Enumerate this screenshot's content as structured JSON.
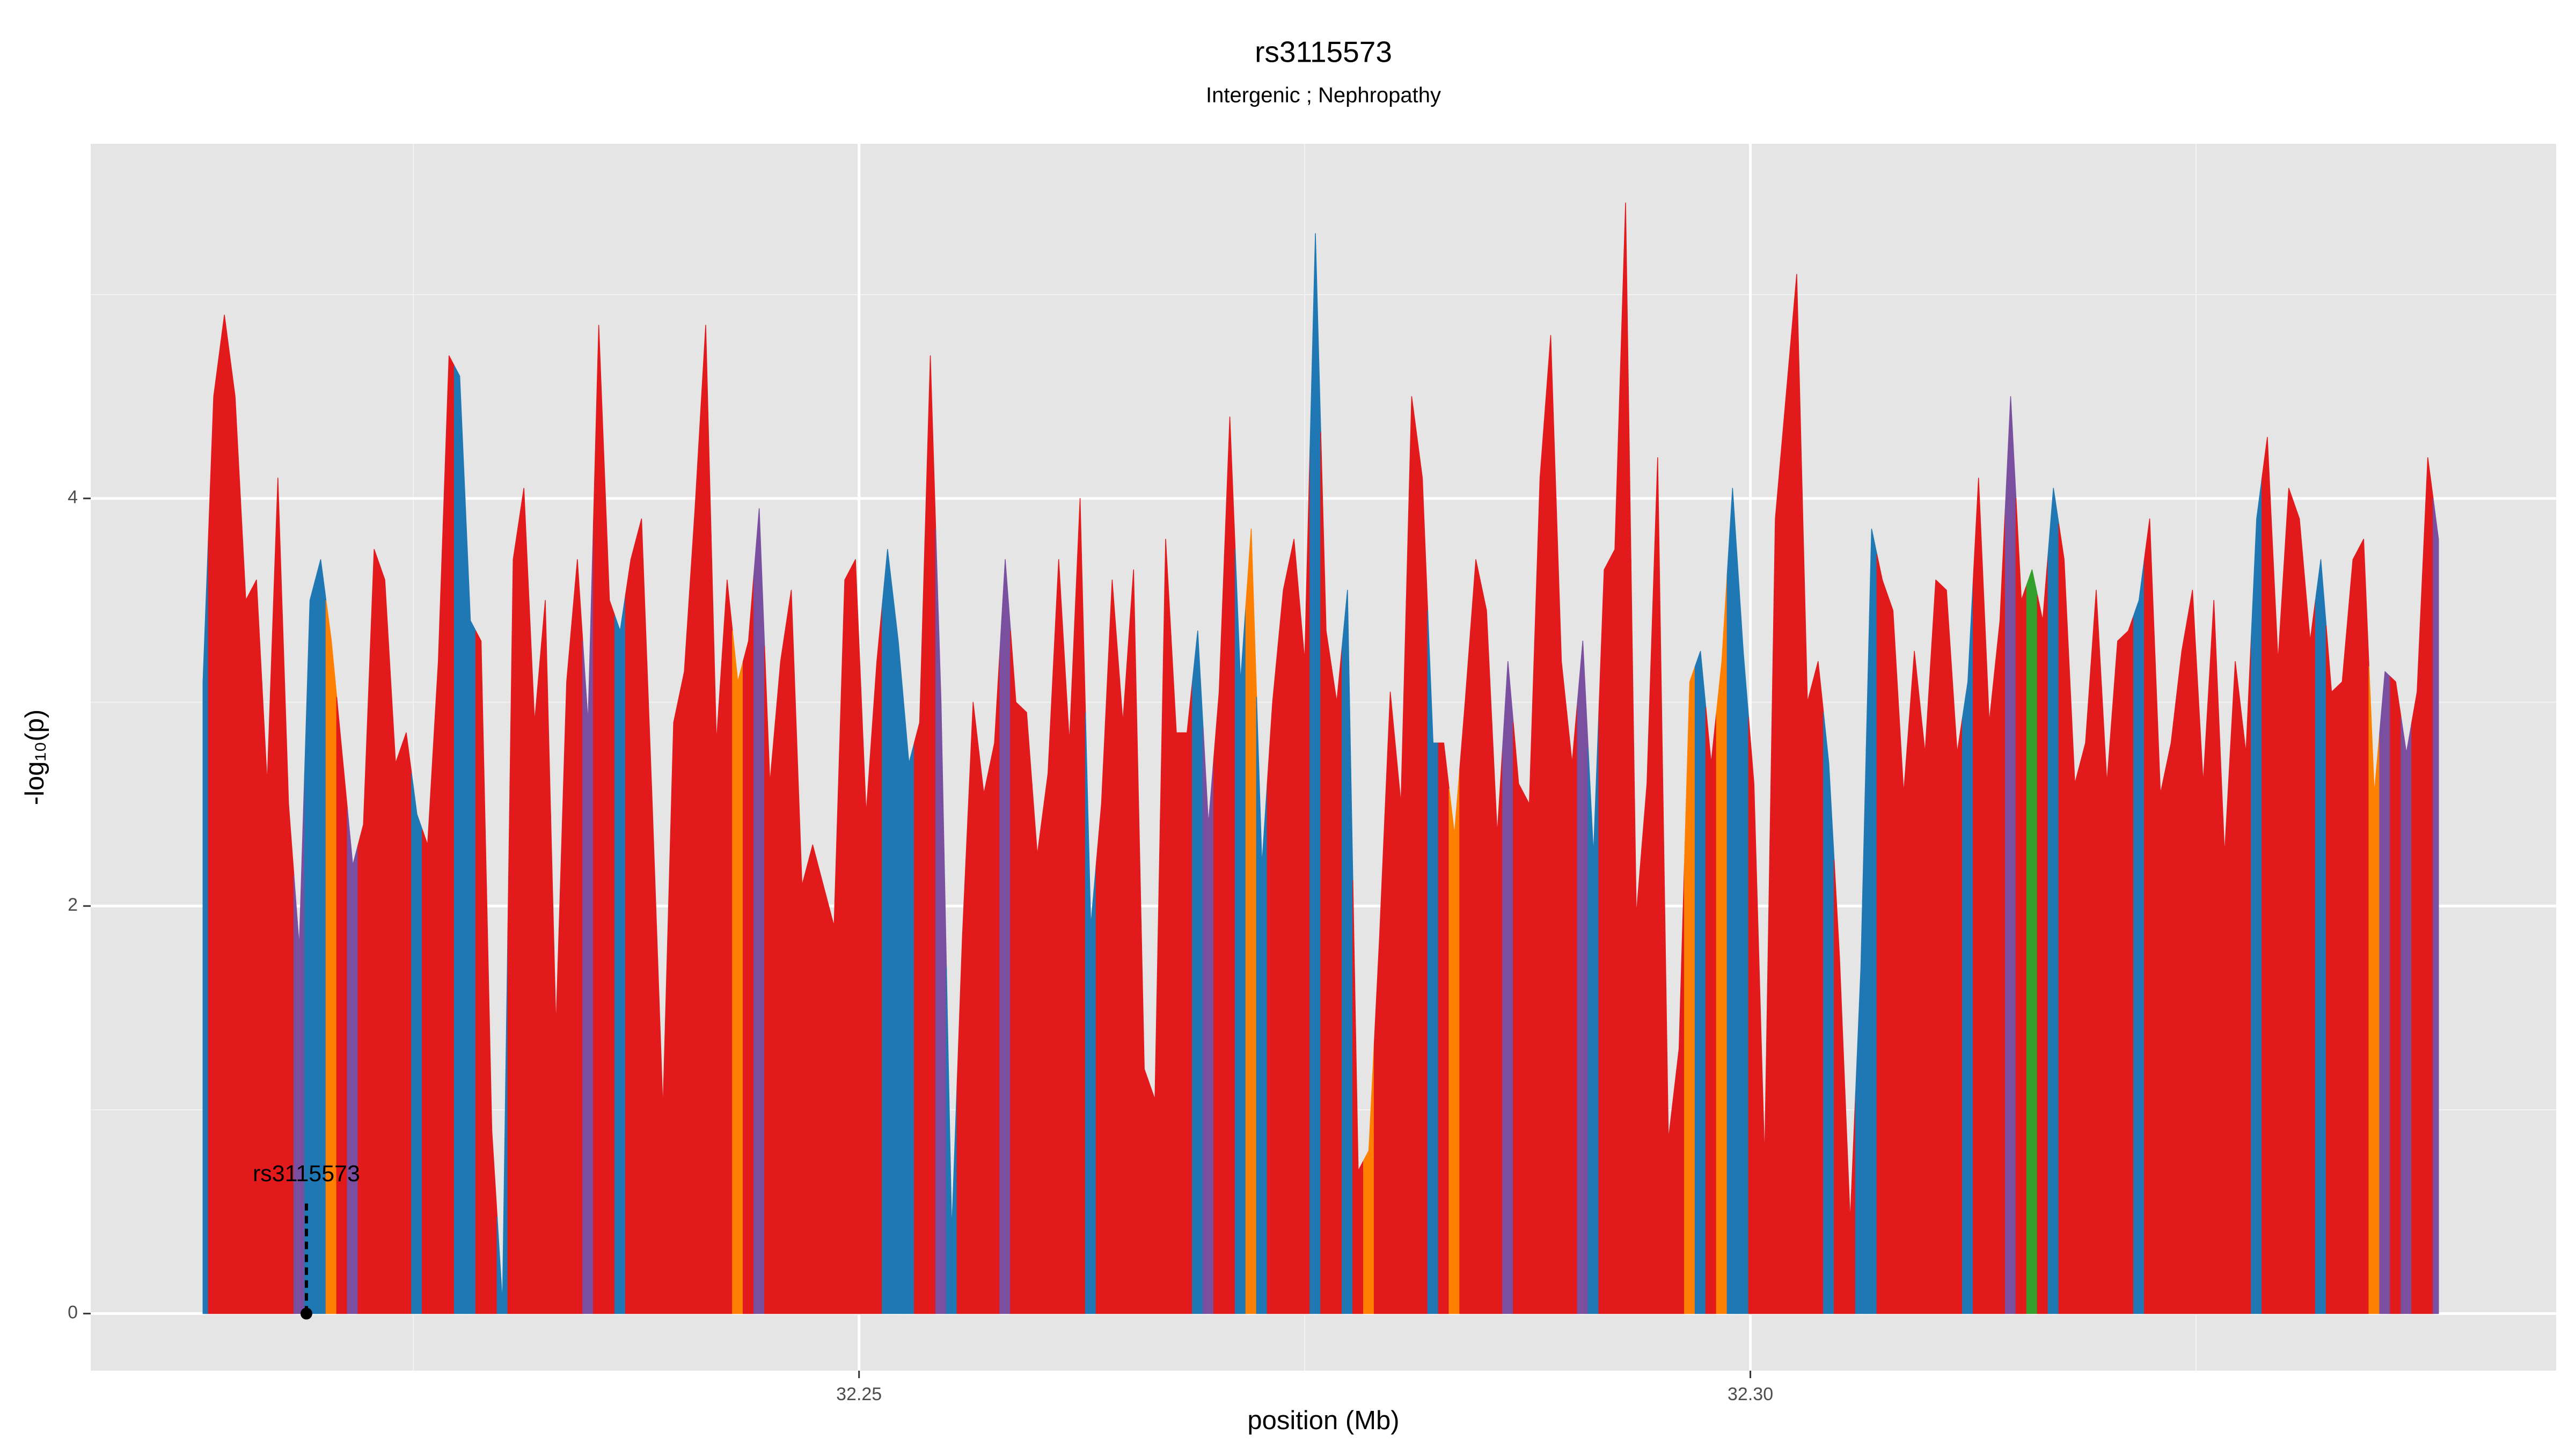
{
  "chart_data": {
    "type": "area",
    "title": "rs3115573",
    "subtitle": "Intergenic ; Nephropathy",
    "x_label": "position (Mb)",
    "y_label": "-log₁₀(p)",
    "xlim": [
      32.2069,
      32.3452
    ],
    "ylim": [
      -0.28,
      5.74
    ],
    "xticks": [
      32.25,
      {
        "value": 32.3,
        "label": "32.30"
      }
    ],
    "yticks": [
      0,
      2,
      4
    ],
    "minor_xticks": [
      32.225,
      32.275,
      32.325
    ],
    "minor_yticks": [
      1,
      3,
      5
    ],
    "grid": true,
    "annotation": {
      "text": "rs3115573",
      "x": 32.219,
      "y": 0
    },
    "x": [
      32.2132,
      32.2138,
      32.2144,
      32.215,
      32.2156,
      32.2162,
      32.2168,
      32.2174,
      32.218,
      32.2186,
      32.2192,
      32.2198,
      32.2204,
      32.221,
      32.2216,
      32.2222,
      32.2228,
      32.2234,
      32.224,
      32.2246,
      32.2252,
      32.2258,
      32.2264,
      32.227,
      32.2276,
      32.2282,
      32.2288,
      32.2294,
      32.23,
      32.2306,
      32.2312,
      32.2318,
      32.2324,
      32.233,
      32.2336,
      32.2342,
      32.2348,
      32.2354,
      32.236,
      32.2366,
      32.2372,
      32.2378,
      32.2384,
      32.239,
      32.2396,
      32.2402,
      32.2408,
      32.2414,
      32.242,
      32.2426,
      32.2432,
      32.2438,
      32.2444,
      32.245,
      32.2456,
      32.2462,
      32.2468,
      32.2474,
      32.248,
      32.2486,
      32.2492,
      32.2498,
      32.2504,
      32.251,
      32.2516,
      32.2522,
      32.2528,
      32.2534,
      32.254,
      32.2546,
      32.2552,
      32.2558,
      32.2564,
      32.257,
      32.2576,
      32.2582,
      32.2588,
      32.2594,
      32.26,
      32.2606,
      32.2612,
      32.2618,
      32.2624,
      32.263,
      32.2636,
      32.2642,
      32.2648,
      32.2654,
      32.266,
      32.2666,
      32.2672,
      32.2678,
      32.2684,
      32.269,
      32.2696,
      32.2702,
      32.2708,
      32.2714,
      32.272,
      32.2726,
      32.2732,
      32.2738,
      32.2744,
      32.275,
      32.2756,
      32.2762,
      32.2768,
      32.2774,
      32.278,
      32.2786,
      32.2792,
      32.2798,
      32.2804,
      32.281,
      32.2816,
      32.2822,
      32.2828,
      32.2834,
      32.284,
      32.2846,
      32.2852,
      32.2858,
      32.2864,
      32.287,
      32.2876,
      32.2882,
      32.2888,
      32.2894,
      32.29,
      32.2906,
      32.2912,
      32.2918,
      32.2924,
      32.293,
      32.2936,
      32.2942,
      32.2948,
      32.2954,
      32.296,
      32.2966,
      32.2972,
      32.2978,
      32.2984,
      32.299,
      32.2996,
      32.3002,
      32.3008,
      32.3014,
      32.302,
      32.3026,
      32.3032,
      32.3038,
      32.3044,
      32.305,
      32.3056,
      32.3062,
      32.3068,
      32.3074,
      32.308,
      32.3086,
      32.3092,
      32.3098,
      32.3104,
      32.311,
      32.3116,
      32.3122,
      32.3128,
      32.3134,
      32.314,
      32.3146,
      32.3152,
      32.3158,
      32.3164,
      32.317,
      32.3176,
      32.3182,
      32.3188,
      32.3194,
      32.32,
      32.3206,
      32.3212,
      32.3218,
      32.3224,
      32.323,
      32.3236,
      32.3242,
      32.3248,
      32.3254,
      32.326,
      32.3266,
      32.3272,
      32.3278,
      32.3284,
      32.329,
      32.3296,
      32.3302,
      32.3308,
      32.3314,
      32.332,
      32.3326,
      32.3332,
      32.3338,
      32.3344,
      32.335,
      32.3356,
      32.3362,
      32.3368,
      32.3374,
      32.338,
      32.3386
    ],
    "values": [
      3.1,
      4.5,
      4.9,
      4.5,
      3.5,
      3.6,
      2.6,
      4.1,
      2.5,
      1.8,
      3.5,
      3.7,
      3.3,
      2.75,
      2.2,
      2.4,
      3.75,
      3.6,
      2.7,
      2.85,
      2.45,
      2.3,
      3.2,
      4.7,
      4.6,
      3.4,
      3.3,
      0.9,
      0.05,
      3.7,
      4.05,
      2.9,
      3.5,
      1.4,
      3.1,
      3.7,
      2.9,
      4.85,
      3.5,
      3.35,
      3.7,
      3.9,
      2.5,
      1.0,
      2.9,
      3.15,
      3.95,
      4.85,
      2.8,
      3.6,
      3.1,
      3.3,
      3.95,
      2.6,
      3.2,
      3.55,
      2.1,
      2.3,
      2.1,
      1.9,
      3.6,
      3.7,
      2.45,
      3.2,
      3.75,
      3.3,
      2.7,
      2.9,
      4.7,
      3.0,
      0.4,
      1.85,
      3.0,
      2.55,
      2.8,
      3.7,
      3.0,
      2.95,
      2.25,
      2.65,
      3.7,
      2.8,
      4.0,
      1.9,
      2.5,
      3.6,
      2.9,
      3.65,
      1.2,
      1.05,
      3.8,
      2.85,
      2.85,
      3.35,
      2.4,
      3.05,
      4.4,
      3.1,
      3.85,
      2.2,
      3.0,
      3.55,
      3.8,
      3.2,
      5.3,
      3.35,
      3.0,
      3.55,
      0.7,
      0.8,
      1.85,
      3.05,
      2.5,
      4.5,
      4.1,
      2.8,
      2.8,
      2.35,
      3.0,
      3.7,
      3.45,
      2.35,
      3.2,
      2.6,
      2.5,
      4.1,
      4.8,
      3.2,
      2.7,
      3.3,
      2.25,
      3.65,
      3.75,
      5.45,
      1.95,
      2.6,
      4.2,
      0.85,
      1.3,
      3.1,
      3.25,
      2.7,
      3.2,
      4.05,
      3.25,
      2.6,
      0.75,
      3.9,
      4.5,
      5.1,
      3.0,
      3.2,
      2.7,
      1.75,
      0.45,
      1.7,
      3.85,
      3.6,
      3.45,
      2.55,
      3.25,
      2.75,
      3.6,
      3.55,
      2.75,
      3.1,
      4.1,
      2.9,
      3.4,
      4.5,
      3.5,
      3.65,
      3.4,
      4.05,
      3.7,
      2.6,
      2.8,
      3.55,
      2.6,
      3.3,
      3.35,
      3.5,
      3.9,
      2.55,
      2.8,
      3.25,
      3.55,
      2.6,
      3.5,
      2.25,
      3.2,
      2.75,
      3.9,
      4.3,
      3.2,
      4.05,
      3.9,
      3.3,
      3.7,
      3.05,
      3.1,
      3.7,
      3.8,
      2.55,
      3.15,
      3.1,
      2.75,
      3.05,
      4.2,
      3.8
    ],
    "colors": [
      "#1f78b4",
      "#e31a1c",
      "#e31a1c",
      "#e31a1c",
      "#e31a1c",
      "#e31a1c",
      "#e31a1c",
      "#e31a1c",
      "#e31a1c",
      "#7a4fa0",
      "#1f78b4",
      "#1f78b4",
      "#ff7f00",
      "#e31a1c",
      "#7a4fa0",
      "#e31a1c",
      "#e31a1c",
      "#e31a1c",
      "#e31a1c",
      "#e31a1c",
      "#1f78b4",
      "#e31a1c",
      "#e31a1c",
      "#e31a1c",
      "#1f78b4",
      "#1f78b4",
      "#e31a1c",
      "#e31a1c",
      "#1f78b4",
      "#e31a1c",
      "#e31a1c",
      "#e31a1c",
      "#e31a1c",
      "#e31a1c",
      "#e31a1c",
      "#e31a1c",
      "#7a4fa0",
      "#e31a1c",
      "#e31a1c",
      "#1f78b4",
      "#e31a1c",
      "#e31a1c",
      "#e31a1c",
      "#e31a1c",
      "#e31a1c",
      "#e31a1c",
      "#e31a1c",
      "#e31a1c",
      "#e31a1c",
      "#e31a1c",
      "#ff7f00",
      "#e31a1c",
      "#7a4fa0",
      "#e31a1c",
      "#e31a1c",
      "#e31a1c",
      "#e31a1c",
      "#e31a1c",
      "#e31a1c",
      "#e31a1c",
      "#e31a1c",
      "#e31a1c",
      "#e31a1c",
      "#e31a1c",
      "#1f78b4",
      "#1f78b4",
      "#1f78b4",
      "#e31a1c",
      "#e31a1c",
      "#7a4fa0",
      "#1f78b4",
      "#e31a1c",
      "#e31a1c",
      "#e31a1c",
      "#e31a1c",
      "#7a4fa0",
      "#e31a1c",
      "#e31a1c",
      "#e31a1c",
      "#e31a1c",
      "#e31a1c",
      "#e31a1c",
      "#e31a1c",
      "#1f78b4",
      "#e31a1c",
      "#e31a1c",
      "#e31a1c",
      "#e31a1c",
      "#e31a1c",
      "#e31a1c",
      "#e31a1c",
      "#e31a1c",
      "#e31a1c",
      "#1f78b4",
      "#7a4fa0",
      "#e31a1c",
      "#e31a1c",
      "#1f78b4",
      "#ff7f00",
      "#1f78b4",
      "#e31a1c",
      "#e31a1c",
      "#e31a1c",
      "#e31a1c",
      "#1f78b4",
      "#e31a1c",
      "#e31a1c",
      "#1f78b4",
      "#e31a1c",
      "#ff7f00",
      "#e31a1c",
      "#e31a1c",
      "#e31a1c",
      "#e31a1c",
      "#e31a1c",
      "#1f78b4",
      "#e31a1c",
      "#ff7f00",
      "#e31a1c",
      "#e31a1c",
      "#e31a1c",
      "#e31a1c",
      "#7a4fa0",
      "#e31a1c",
      "#e31a1c",
      "#e31a1c",
      "#e31a1c",
      "#e31a1c",
      "#e31a1c",
      "#7a4fa0",
      "#1f78b4",
      "#e31a1c",
      "#e31a1c",
      "#e31a1c",
      "#e31a1c",
      "#e31a1c",
      "#e31a1c",
      "#e31a1c",
      "#e31a1c",
      "#ff7f00",
      "#1f78b4",
      "#e31a1c",
      "#ff7f00",
      "#1f78b4",
      "#1f78b4",
      "#e31a1c",
      "#e31a1c",
      "#e31a1c",
      "#e31a1c",
      "#e31a1c",
      "#e31a1c",
      "#e31a1c",
      "#1f78b4",
      "#e31a1c",
      "#e31a1c",
      "#1f78b4",
      "#1f78b4",
      "#e31a1c",
      "#e31a1c",
      "#e31a1c",
      "#e31a1c",
      "#e31a1c",
      "#e31a1c",
      "#e31a1c",
      "#e31a1c",
      "#1f78b4",
      "#e31a1c",
      "#e31a1c",
      "#e31a1c",
      "#7a4fa0",
      "#e31a1c",
      "#33a02c",
      "#e31a1c",
      "#1f78b4",
      "#e31a1c",
      "#e31a1c",
      "#e31a1c",
      "#e31a1c",
      "#e31a1c",
      "#e31a1c",
      "#e31a1c",
      "#1f78b4",
      "#e31a1c",
      "#e31a1c",
      "#e31a1c",
      "#e31a1c",
      "#e31a1c",
      "#e31a1c",
      "#e31a1c",
      "#e31a1c",
      "#e31a1c",
      "#e31a1c",
      "#1f78b4",
      "#e31a1c",
      "#e31a1c",
      "#e31a1c",
      "#e31a1c",
      "#e31a1c",
      "#1f78b4",
      "#e31a1c",
      "#e31a1c",
      "#e31a1c",
      "#e31a1c",
      "#ff7f00",
      "#7a4fa0",
      "#e31a1c",
      "#7a4fa0",
      "#e31a1c",
      "#e31a1c",
      "#7a4fa0"
    ]
  }
}
